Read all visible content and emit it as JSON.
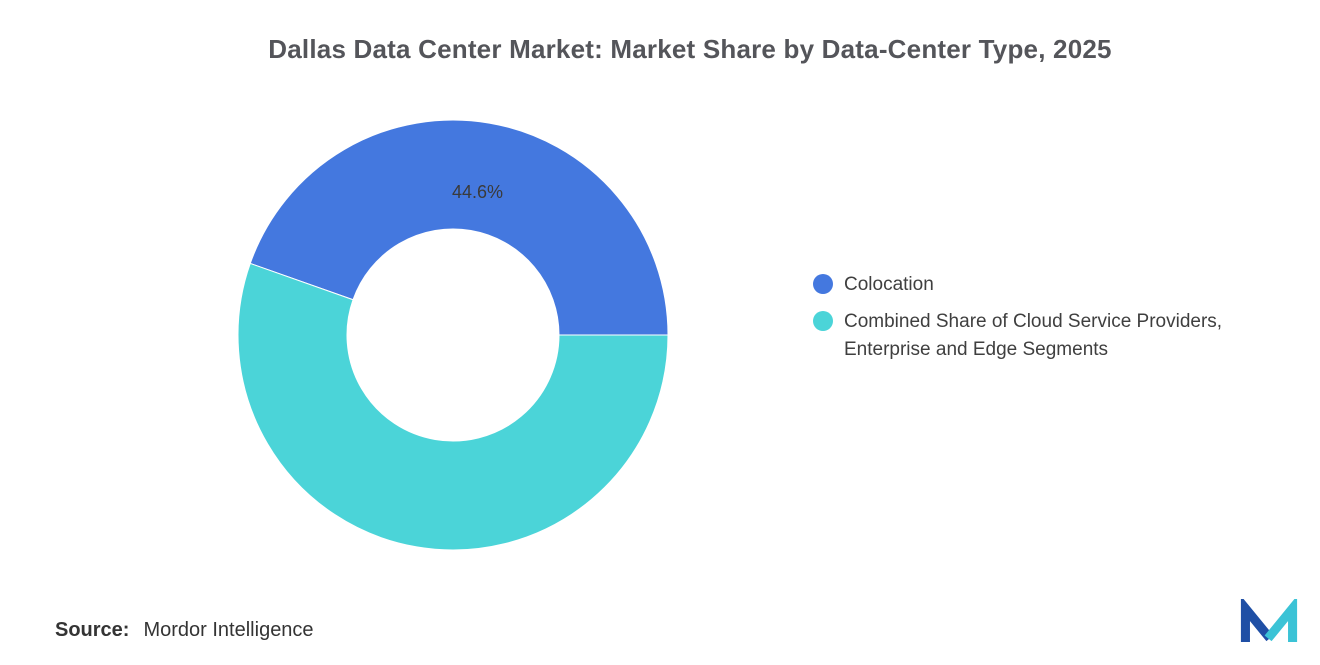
{
  "chart_data": {
    "type": "pie",
    "donut": true,
    "title": "Dallas Data Center Market: Market Share by Data-Center Type, 2025",
    "legend_position": "right",
    "data_label_color": "#3a3a3a",
    "slices": [
      {
        "label": "Colocation",
        "value": 44.6,
        "color": "#4478DF",
        "data_label": "44.6%"
      },
      {
        "label": "Combined Share of Cloud Service Providers, Enterprise and Edge Segments",
        "value": 55.4,
        "color": "#4BD4D8",
        "data_label": ""
      }
    ]
  },
  "source": {
    "prefix": "Source:",
    "text": "Mordor Intelligence"
  },
  "logo": {
    "name": "mordor-intelligence-logo",
    "colors": {
      "blue": "#1F4FA5",
      "teal": "#3BC3D6"
    }
  }
}
